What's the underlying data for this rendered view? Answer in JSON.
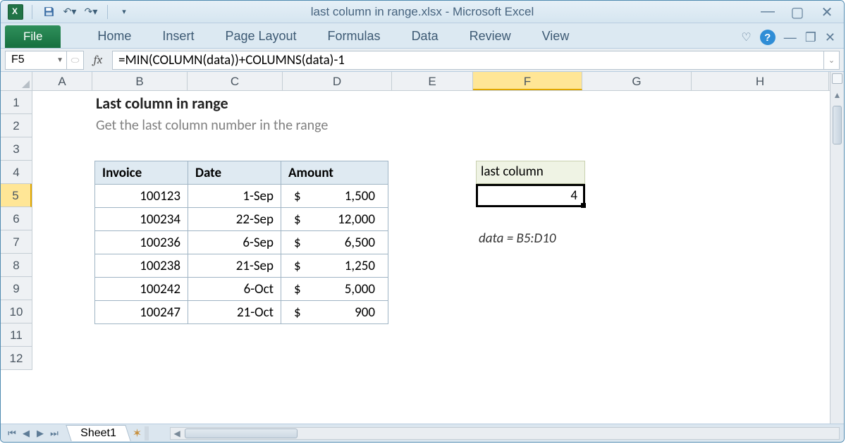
{
  "window": {
    "title": "last column in range.xlsx  -  Microsoft Excel"
  },
  "ribbon": {
    "file": "File",
    "tabs": [
      "Home",
      "Insert",
      "Page Layout",
      "Formulas",
      "Data",
      "Review",
      "View"
    ]
  },
  "namebox": "F5",
  "formula": "=MIN(COLUMN(data))+COLUMNS(data)-1",
  "columns": [
    {
      "label": "A",
      "width": 85,
      "active": false
    },
    {
      "label": "B",
      "width": 135,
      "active": false
    },
    {
      "label": "C",
      "width": 135,
      "active": false
    },
    {
      "label": "D",
      "width": 155,
      "active": false
    },
    {
      "label": "E",
      "width": 115,
      "active": false
    },
    {
      "label": "F",
      "width": 155,
      "active": true
    },
    {
      "label": "G",
      "width": 155,
      "active": false
    },
    {
      "label": "H",
      "width": 195,
      "active": false
    }
  ],
  "rows": [
    {
      "label": "1",
      "active": false
    },
    {
      "label": "2",
      "active": false
    },
    {
      "label": "3",
      "active": false
    },
    {
      "label": "4",
      "active": false
    },
    {
      "label": "5",
      "active": true
    },
    {
      "label": "6",
      "active": false
    },
    {
      "label": "7",
      "active": false
    },
    {
      "label": "8",
      "active": false
    },
    {
      "label": "9",
      "active": false
    },
    {
      "label": "10",
      "active": false
    },
    {
      "label": "11",
      "active": false
    },
    {
      "label": "12",
      "active": false
    }
  ],
  "content": {
    "heading": "Last column in range",
    "subheading": "Get the last column number in the range",
    "table_headers": [
      "Invoice",
      "Date",
      "Amount"
    ],
    "table_rows": [
      {
        "invoice": "100123",
        "date": "1-Sep",
        "amount": "1,500"
      },
      {
        "invoice": "100234",
        "date": "22-Sep",
        "amount": "12,000"
      },
      {
        "invoice": "100236",
        "date": "6-Sep",
        "amount": "6,500"
      },
      {
        "invoice": "100238",
        "date": "21-Sep",
        "amount": "1,250"
      },
      {
        "invoice": "100242",
        "date": "6-Oct",
        "amount": "5,000"
      },
      {
        "invoice": "100247",
        "date": "21-Oct",
        "amount": "900"
      }
    ],
    "currency": "$",
    "result_header": "last column",
    "result_value": "4",
    "named_range": "data = B5:D10"
  },
  "sheet": {
    "name": "Sheet1"
  },
  "colors": {
    "accent": "#217346",
    "header_fill": "#dfeaf2",
    "header_border": "#9fb4c4",
    "result_hdr_fill": "#eff3e4",
    "active_header": "#ffe696"
  }
}
